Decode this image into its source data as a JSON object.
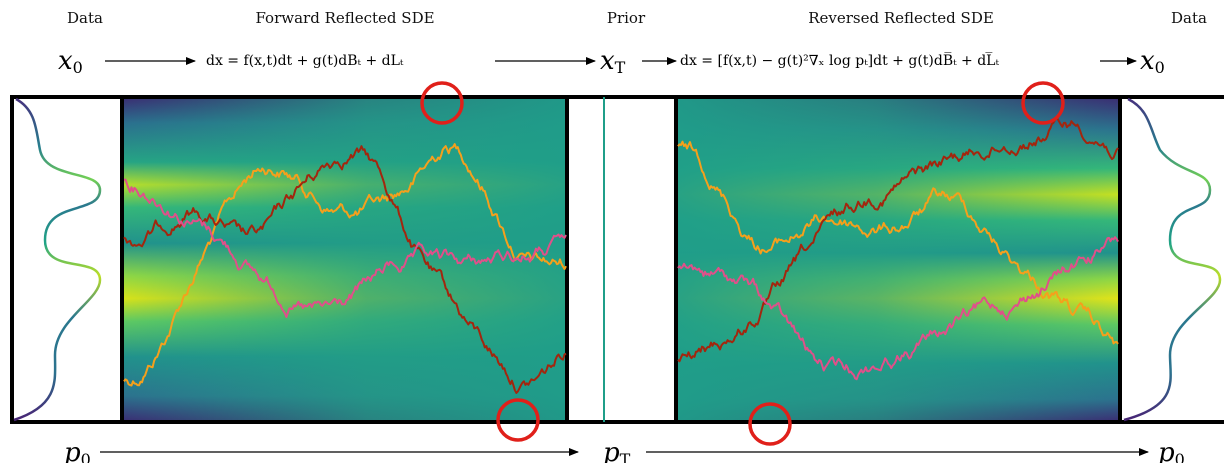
{
  "header": {
    "data_left": "Data",
    "forward_title": "Forward Reflected SDE",
    "prior": "Prior",
    "reverse_title": "Reversed Reflected SDE",
    "data_right": "Data"
  },
  "equations": {
    "x0_left": "x",
    "x0_left_sub": "0",
    "forward": "dx = f(x,t)dt + g(t)dBₜ + dLₜ",
    "xT": "x",
    "xT_sub": "T",
    "reverse": "dx = [f(x,t) − g(t)²∇ₓ log pₜ]dt + g(t)dB̅ₜ + dL̅ₜ",
    "x0_right": "x",
    "x0_right_sub": "0"
  },
  "bottom": {
    "p0_left": "p",
    "p0_left_sub": "0",
    "pT": "p",
    "pT_sub": "T",
    "p0_right": "p",
    "p0_right_sub": "0"
  },
  "colors": {
    "path_orange": "#f5a01c",
    "path_darkred": "#a3260e",
    "path_pink": "#e0508a",
    "circle": "#e0201a",
    "frame": "#000000",
    "prior_line": "#1f9e89"
  }
}
